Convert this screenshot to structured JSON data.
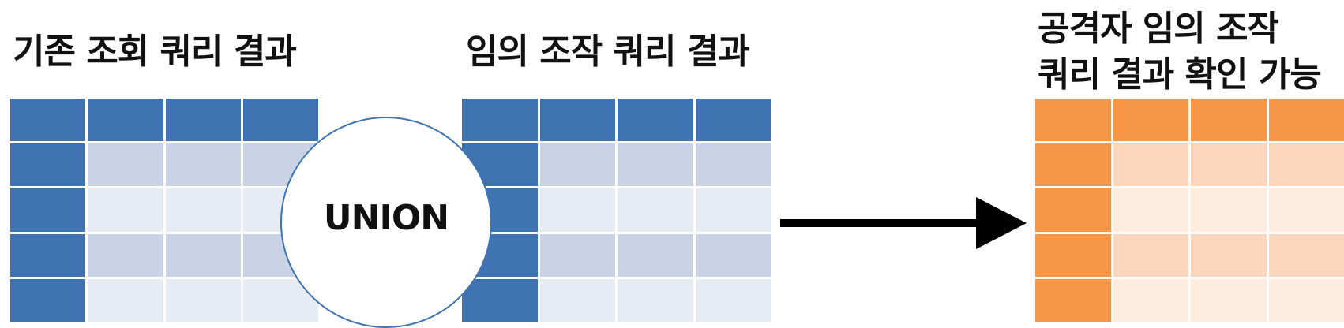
{
  "titles": {
    "left": "기존 조회 쿼리 결과",
    "middle": "임의 조작 쿼리 결과",
    "right_line1": "공격자 임의 조작",
    "right_line2": "쿼리 결과 확인 가능"
  },
  "union_label": "UNION",
  "tables": {
    "original_result": {
      "columns": 4,
      "rows": 5,
      "color": "#3f73b1"
    },
    "injected_result": {
      "columns": 4,
      "rows": 5,
      "color": "#3f73b1"
    },
    "combined_result": {
      "columns": 4,
      "rows": 5,
      "color": "#f79646"
    }
  },
  "arrow": {
    "icon": "right-arrow-icon",
    "color": "#000000"
  },
  "colors": {
    "blue_header": "#3f73b1",
    "blue_band_dark": "#c9d3e5",
    "blue_band_light": "#e6ebf4",
    "orange_header": "#f79646",
    "orange_band_dark": "#fcd6bd",
    "orange_band_light": "#fdebde"
  }
}
